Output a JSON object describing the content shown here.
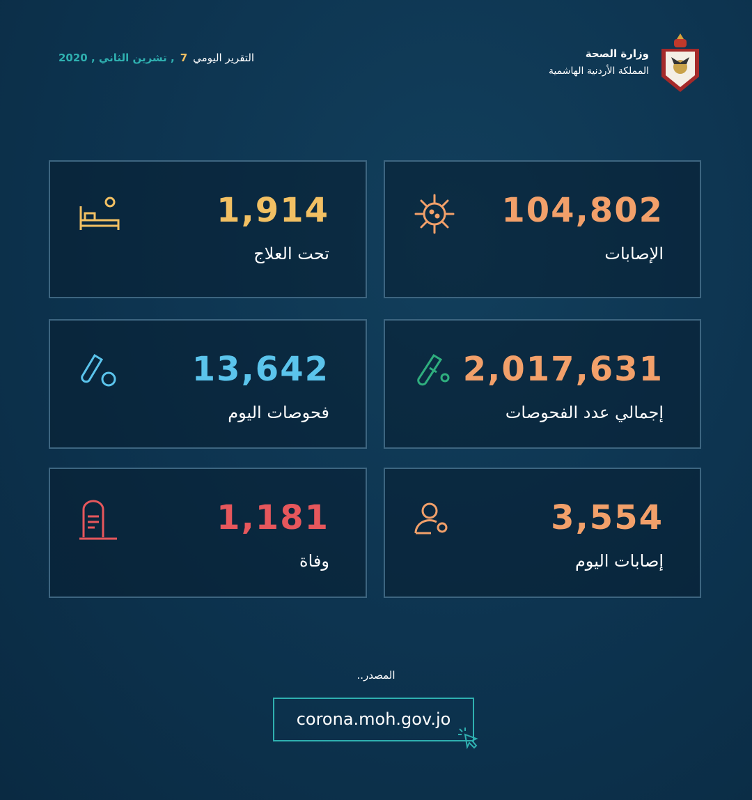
{
  "header": {
    "ministry": "وزارة الصحة",
    "kingdom": "المملكة الأردنية الهاشمية",
    "report_label": "التقرير اليومي",
    "day": "7",
    "date": ", تشرين الثاني , 2020"
  },
  "cards": [
    {
      "value": "104,802",
      "label": "الإصابات",
      "color": "#f2a06a",
      "icon": "virus-icon"
    },
    {
      "value": "1,914",
      "label": "تحت العلاج",
      "color": "#f2c063",
      "icon": "hospital-bed-icon"
    },
    {
      "value": "2,017,631",
      "label": "إجمالي عدد الفحوصات",
      "color": "#f2a06a",
      "icon": "test-tube-icon"
    },
    {
      "value": "13,642",
      "label": "فحوصات اليوم",
      "color": "#5bc4ec",
      "icon": "test-tube-icon"
    },
    {
      "value": "3,554",
      "label": "إصابات اليوم",
      "color": "#f2a06a",
      "icon": "person-gear-icon"
    },
    {
      "value": "1,181",
      "label": "وفاة",
      "color": "#e6575c",
      "icon": "tombstone-icon"
    }
  ],
  "footer": {
    "source_label": "المصدر..",
    "url": "corona.moh.gov.jo"
  }
}
